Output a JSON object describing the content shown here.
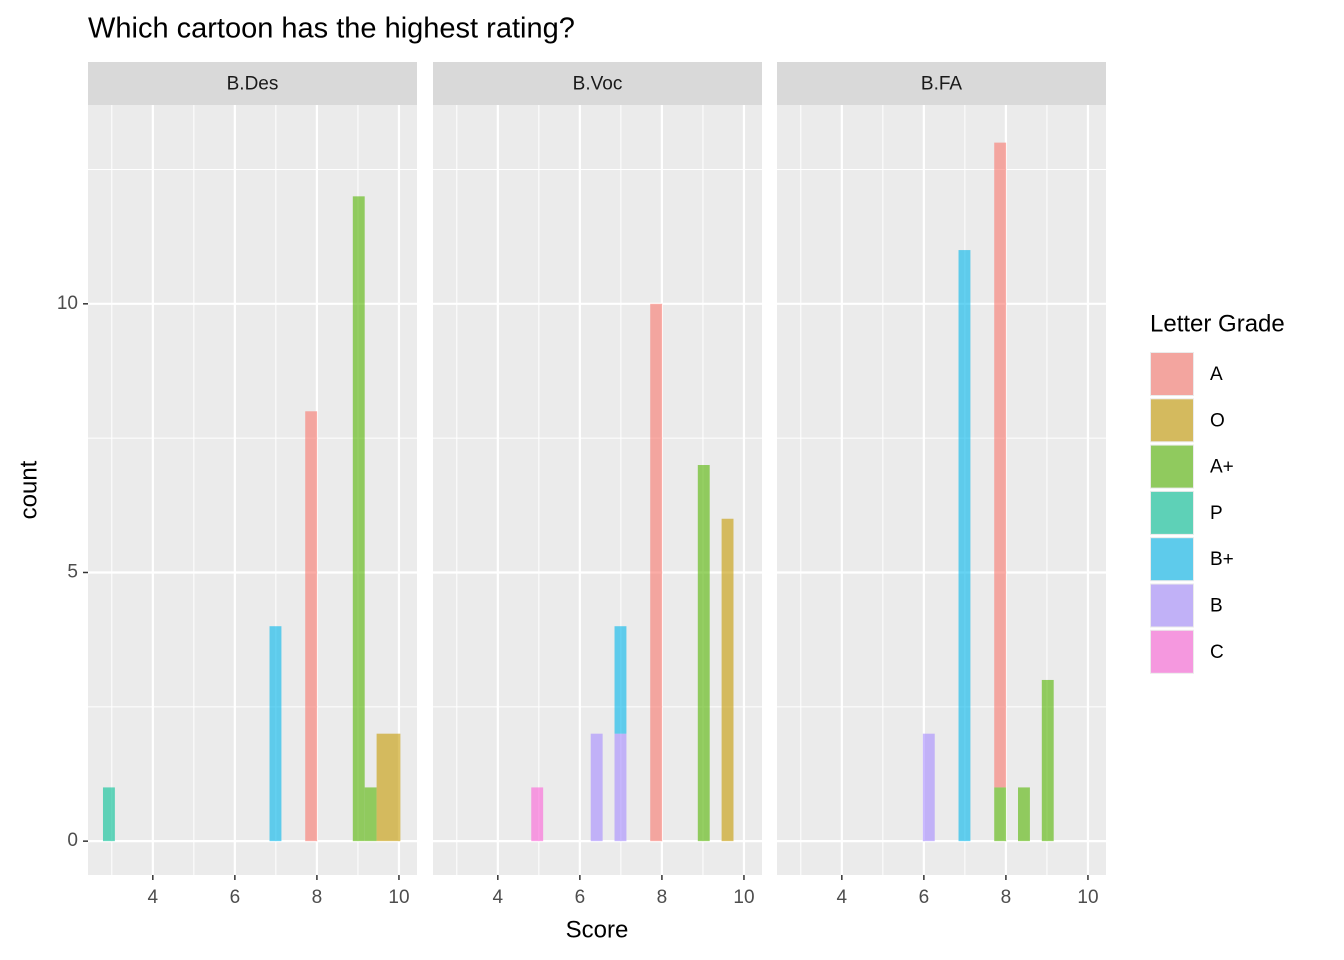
{
  "title": "Which cartoon has the highest rating?",
  "x_label": "Score",
  "y_label": "count",
  "legend_title": "Letter Grade",
  "chart_data": [
    {
      "type": "histogram",
      "title": "B.Des",
      "binwidth": 0.29,
      "xlim": [
        2.42,
        10.44
      ],
      "xticks": [
        4,
        6,
        8,
        10
      ],
      "xminor": [
        3,
        5,
        7,
        9
      ],
      "ylim": [
        -0.63,
        13.7
      ],
      "yticks": [
        0,
        5,
        10
      ],
      "yminor": [
        2.5,
        7.5,
        12.5
      ],
      "grid": true,
      "series": [
        {
          "name": "A",
          "color": "#F8766D",
          "x": [
            7.86
          ],
          "values": [
            8
          ]
        },
        {
          "name": "O",
          "color": "#C49A00",
          "x": [
            9.6,
            9.89
          ],
          "values": [
            2,
            2
          ]
        },
        {
          "name": "A+",
          "color": "#53B400",
          "x": [
            9.02,
            9.31
          ],
          "values": [
            12,
            1
          ]
        },
        {
          "name": "P",
          "color": "#00C094",
          "x": [
            2.93
          ],
          "values": [
            1
          ]
        },
        {
          "name": "B+",
          "color": "#00B6EB",
          "x": [
            6.99
          ],
          "values": [
            4
          ]
        },
        {
          "name": "B",
          "color": "#A58AFF",
          "x": [],
          "values": []
        },
        {
          "name": "C",
          "color": "#FB61D7",
          "x": [],
          "values": []
        }
      ]
    },
    {
      "type": "histogram",
      "title": "B.Voc",
      "binwidth": 0.29,
      "xlim": [
        2.42,
        10.44
      ],
      "xticks": [
        4,
        6,
        8,
        10
      ],
      "xminor": [
        3,
        5,
        7,
        9
      ],
      "ylim": [
        -0.63,
        13.7
      ],
      "yticks": [
        0,
        5,
        10
      ],
      "yminor": [
        2.5,
        7.5,
        12.5
      ],
      "grid": true,
      "series": [
        {
          "name": "A",
          "color": "#F8766D",
          "x": [
            7.86
          ],
          "values": [
            10
          ]
        },
        {
          "name": "O",
          "color": "#C49A00",
          "x": [
            9.6
          ],
          "values": [
            6
          ]
        },
        {
          "name": "A+",
          "color": "#53B400",
          "x": [
            9.02
          ],
          "values": [
            7
          ]
        },
        {
          "name": "P",
          "color": "#00C094",
          "x": [],
          "values": []
        },
        {
          "name": "B+",
          "color": "#00B6EB",
          "x": [
            6.99
          ],
          "values": [
            2
          ]
        },
        {
          "name": "B",
          "color": "#A58AFF",
          "x": [
            6.41,
            6.99
          ],
          "values": [
            2,
            2
          ]
        },
        {
          "name": "C",
          "color": "#FB61D7",
          "x": [
            4.96
          ],
          "values": [
            1
          ]
        }
      ]
    },
    {
      "type": "histogram",
      "title": "B.FA",
      "binwidth": 0.29,
      "xlim": [
        2.42,
        10.44
      ],
      "xticks": [
        4,
        6,
        8,
        10
      ],
      "xminor": [
        3,
        5,
        7,
        9
      ],
      "ylim": [
        -0.63,
        13.7
      ],
      "yticks": [
        0,
        5,
        10
      ],
      "yminor": [
        2.5,
        7.5,
        12.5
      ],
      "grid": true,
      "series": [
        {
          "name": "A",
          "color": "#F8766D",
          "x": [
            7.86
          ],
          "values": [
            12
          ]
        },
        {
          "name": "O",
          "color": "#C49A00",
          "x": [],
          "values": []
        },
        {
          "name": "A+",
          "color": "#53B400",
          "x": [
            7.86,
            8.44,
            9.02
          ],
          "values": [
            1,
            1,
            3
          ]
        },
        {
          "name": "P",
          "color": "#00C094",
          "x": [],
          "values": []
        },
        {
          "name": "B+",
          "color": "#00B6EB",
          "x": [
            6.99
          ],
          "values": [
            11
          ]
        },
        {
          "name": "B",
          "color": "#A58AFF",
          "x": [
            6.12
          ],
          "values": [
            2
          ]
        },
        {
          "name": "C",
          "color": "#FB61D7",
          "x": [],
          "values": []
        }
      ]
    }
  ]
}
